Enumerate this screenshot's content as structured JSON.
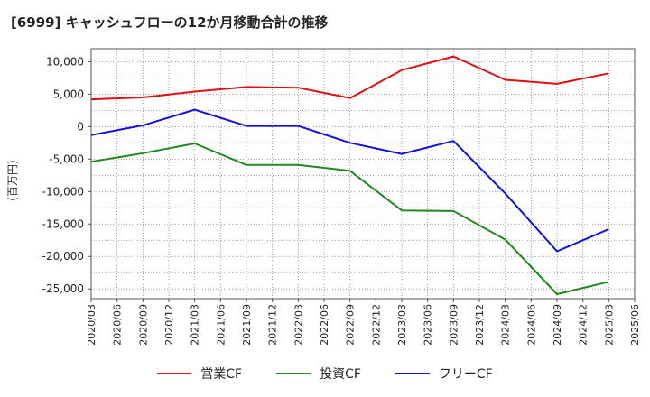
{
  "chart_data": {
    "type": "line",
    "title": "[6999]  キャッシュフローの12か月移動合計の推移",
    "xlabel": "",
    "ylabel": "(百万円)",
    "ylim": [
      -26500,
      12000
    ],
    "yticks": [
      10000,
      5000,
      0,
      -5000,
      -10000,
      -15000,
      -20000,
      -25000
    ],
    "ytick_labels": [
      "10,000",
      "5,000",
      "0",
      "-5,000",
      "-10,000",
      "-15,000",
      "-20,000",
      "-25,000"
    ],
    "x_ticks": [
      "2020/03",
      "2020/06",
      "2020/09",
      "2020/12",
      "2021/03",
      "2021/06",
      "2021/09",
      "2021/12",
      "2022/03",
      "2022/06",
      "2022/09",
      "2022/12",
      "2023/03",
      "2023/06",
      "2023/09",
      "2023/12",
      "2024/03",
      "2024/06",
      "2024/09",
      "2024/12",
      "2025/03",
      "2025/06"
    ],
    "x": [
      "2020/03",
      "2020/09",
      "2021/03",
      "2021/09",
      "2022/03",
      "2022/09",
      "2023/03",
      "2023/09",
      "2024/03",
      "2024/09",
      "2025/03"
    ],
    "grid": true,
    "legend_position": "bottom",
    "series": [
      {
        "name": "営業CF",
        "color": "#dd1111",
        "values": [
          4200,
          4500,
          5400,
          6100,
          6000,
          4400,
          8700,
          10800,
          7200,
          6600,
          8200
        ]
      },
      {
        "name": "投資CF",
        "color": "#228822",
        "values": [
          -5400,
          -4100,
          -2600,
          -5900,
          -5900,
          -6800,
          -12900,
          -13000,
          -17400,
          -25800,
          -23900
        ]
      },
      {
        "name": "フリーCF",
        "color": "#1111dd",
        "values": [
          -1300,
          200,
          2600,
          100,
          100,
          -2500,
          -4200,
          -2200,
          -10300,
          -19200,
          -15800
        ]
      }
    ]
  }
}
